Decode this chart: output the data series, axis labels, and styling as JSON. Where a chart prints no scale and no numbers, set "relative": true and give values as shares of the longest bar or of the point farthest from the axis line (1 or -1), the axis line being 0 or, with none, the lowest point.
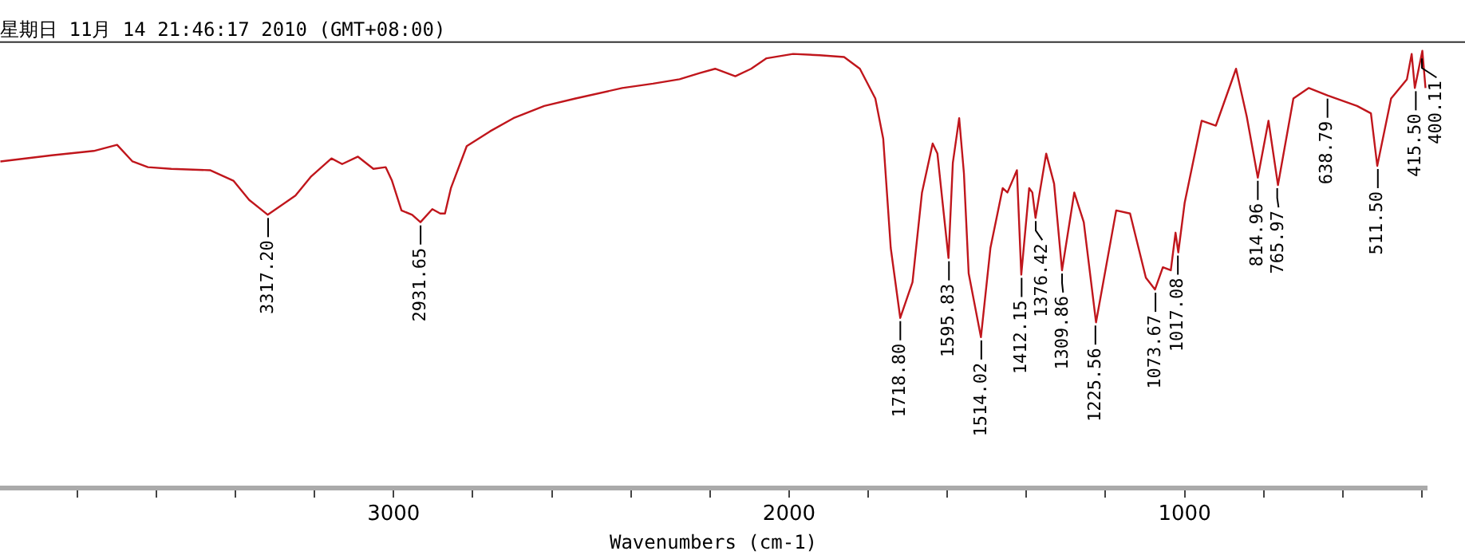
{
  "chart_data": {
    "type": "line",
    "title": "星期日 11月 14 21:46:17 2010 (GMT+08:00)",
    "xlabel": "Wavenumbers (cm-1)",
    "relative": true,
    "color": "#c0161c",
    "xlim": [
      3995,
      388
    ],
    "xticks": [
      {
        "value": 3800,
        "label": null
      },
      {
        "value": 3600,
        "label": null
      },
      {
        "value": 3400,
        "label": null
      },
      {
        "value": 3200,
        "label": null
      },
      3000,
      {
        "value": 2800,
        "label": null
      },
      {
        "value": 2600,
        "label": null
      },
      {
        "value": 2400,
        "label": null
      },
      {
        "value": 2200,
        "label": null
      },
      2000,
      {
        "value": 1800,
        "label": null
      },
      {
        "value": 1600,
        "label": null
      },
      {
        "value": 1400,
        "label": null
      },
      {
        "value": 1200,
        "label": null
      },
      1000,
      {
        "value": 800,
        "label": null
      },
      {
        "value": 600,
        "label": null
      },
      {
        "value": 400,
        "label": null
      }
    ],
    "x": [
      3994,
      3864,
      3758,
      3699,
      3660,
      3621,
      3562,
      3464,
      3405,
      3365,
      3318,
      3248,
      3208,
      3157,
      3130,
      3090,
      3051,
      3020,
      3004,
      2980,
      2953,
      2932,
      2902,
      2882,
      2870,
      2855,
      2815,
      2756,
      2697,
      2619,
      2540,
      2422,
      2344,
      2277,
      2226,
      2187,
      2136,
      2096,
      2057,
      1990,
      1923,
      1861,
      1821,
      1782,
      1762,
      1743,
      1719,
      1688,
      1664,
      1637,
      1625,
      1609,
      1597,
      1586,
      1570,
      1558,
      1546,
      1515,
      1491,
      1460,
      1448,
      1424,
      1413,
      1393,
      1385,
      1377,
      1350,
      1330,
      1310,
      1279,
      1255,
      1224,
      1173,
      1138,
      1098,
      1075,
      1055,
      1035,
      1023,
      1016,
      1000,
      957,
      921,
      870,
      843,
      815,
      788,
      764,
      725,
      686,
      639,
      564,
      529,
      513,
      478,
      438,
      426,
      418,
      399,
      391
    ],
    "values": [
      0.747,
      0.761,
      0.771,
      0.785,
      0.747,
      0.734,
      0.73,
      0.727,
      0.703,
      0.659,
      0.625,
      0.669,
      0.713,
      0.754,
      0.741,
      0.758,
      0.73,
      0.734,
      0.703,
      0.635,
      0.625,
      0.608,
      0.638,
      0.628,
      0.628,
      0.686,
      0.782,
      0.816,
      0.846,
      0.874,
      0.891,
      0.915,
      0.925,
      0.935,
      0.949,
      0.959,
      0.942,
      0.959,
      0.983,
      0.993,
      0.99,
      0.986,
      0.959,
      0.891,
      0.799,
      0.549,
      0.389,
      0.471,
      0.676,
      0.788,
      0.765,
      0.628,
      0.526,
      0.744,
      0.846,
      0.72,
      0.491,
      0.345,
      0.549,
      0.686,
      0.676,
      0.727,
      0.488,
      0.686,
      0.676,
      0.618,
      0.765,
      0.696,
      0.498,
      0.676,
      0.608,
      0.379,
      0.635,
      0.628,
      0.481,
      0.454,
      0.505,
      0.498,
      0.584,
      0.539,
      0.652,
      0.84,
      0.829,
      0.959,
      0.85,
      0.71,
      0.84,
      0.693,
      0.891,
      0.915,
      0.898,
      0.874,
      0.857,
      0.737,
      0.891,
      0.935,
      0.993,
      0.915,
      1.0,
      0.915
    ],
    "annotations": [
      {
        "text": "3317.20",
        "x": 3317.2,
        "y": 0.625
      },
      {
        "text": "2931.65",
        "x": 2931.65,
        "y": 0.608
      },
      {
        "text": "1718.80",
        "x": 1718.8,
        "y": 0.389
      },
      {
        "text": "1595.83",
        "x": 1595.83,
        "y": 0.526
      },
      {
        "text": "1514.02",
        "x": 1514.02,
        "y": 0.345
      },
      {
        "text": "1412.15",
        "x": 1412.15,
        "y": 0.488
      },
      {
        "text": "1376.42",
        "x": 1376.42,
        "y": 0.618
      },
      {
        "text": "1309.86",
        "x": 1309.86,
        "y": 0.498
      },
      {
        "text": "1225.56",
        "x": 1225.56,
        "y": 0.379
      },
      {
        "text": "1073.67",
        "x": 1073.67,
        "y": 0.454
      },
      {
        "text": "1017.08",
        "x": 1017.08,
        "y": 0.539
      },
      {
        "text": "814.96",
        "x": 814.96,
        "y": 0.71
      },
      {
        "text": "765.97",
        "x": 765.97,
        "y": 0.693
      },
      {
        "text": "638.79",
        "x": 638.79,
        "y": 0.898
      },
      {
        "text": "511.50",
        "x": 511.5,
        "y": 0.737
      },
      {
        "text": "415.50",
        "x": 415.5,
        "y": 0.915
      },
      {
        "text": "400.11",
        "x": 400.11,
        "y": 0.99
      }
    ]
  }
}
